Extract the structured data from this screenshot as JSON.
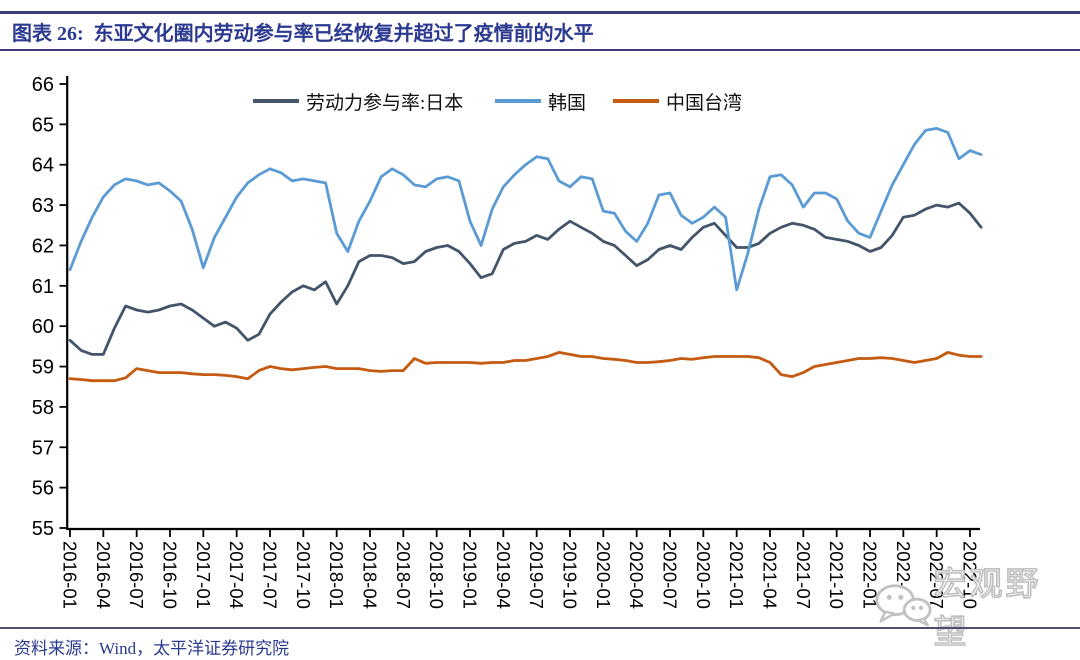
{
  "header": {
    "title": "图表 26:  东亚文化圈内劳动参与率已经恢复并超过了疫情前的水平"
  },
  "footer": {
    "source_label": "资料来源：Wind，太平洋证券研究院"
  },
  "watermark": {
    "icon": "wechat-icon",
    "text": "宏观野望"
  },
  "chart_data": {
    "type": "line",
    "title": "东亚文化圈内劳动参与率已经恢复并超过了疫情前的水平",
    "xlabel": "",
    "ylabel": "",
    "ylim": [
      55,
      66
    ],
    "y_ticks": [
      55,
      56,
      57,
      58,
      59,
      60,
      61,
      62,
      63,
      64,
      65,
      66
    ],
    "grid": false,
    "legend_position": "top",
    "x_frequency": "monthly",
    "x_start": "2016-01",
    "x_end": "2022-11",
    "x_tick_labels": [
      "2016-01",
      "2016-04",
      "2016-07",
      "2016-10",
      "2017-01",
      "2017-04",
      "2017-07",
      "2017-10",
      "2018-01",
      "2018-04",
      "2018-07",
      "2018-10",
      "2019-01",
      "2019-04",
      "2019-07",
      "2019-10",
      "2020-01",
      "2020-04",
      "2020-07",
      "2020-10",
      "2021-01",
      "2021-04",
      "2021-07",
      "2021-10",
      "2022-01",
      "2022-04",
      "2022-07",
      "2022-10"
    ],
    "series": [
      {
        "name": "劳动力参与率:日本",
        "color": "#44546A",
        "values": [
          59.65,
          59.4,
          59.3,
          59.3,
          59.95,
          60.5,
          60.4,
          60.35,
          60.4,
          60.5,
          60.55,
          60.4,
          60.2,
          60.0,
          60.1,
          59.95,
          59.65,
          59.8,
          60.3,
          60.6,
          60.85,
          61.0,
          60.9,
          61.1,
          60.55,
          61.0,
          61.6,
          61.75,
          61.75,
          61.7,
          61.55,
          61.6,
          61.85,
          61.95,
          62.0,
          61.85,
          61.55,
          61.2,
          61.3,
          61.9,
          62.05,
          62.1,
          62.25,
          62.15,
          62.4,
          62.6,
          62.45,
          62.3,
          62.1,
          62.0,
          61.75,
          61.5,
          61.65,
          61.9,
          62.0,
          61.9,
          62.2,
          62.45,
          62.55,
          62.25,
          61.95,
          61.95,
          62.05,
          62.3,
          62.45,
          62.55,
          62.5,
          62.4,
          62.2,
          62.15,
          62.1,
          62.0,
          61.85,
          61.95,
          62.25,
          62.7,
          62.75,
          62.9,
          63.0,
          62.95,
          63.05,
          62.8,
          62.45
        ]
      },
      {
        "name": "韩国",
        "color": "#5B9BD5",
        "values": [
          61.4,
          62.1,
          62.7,
          63.2,
          63.5,
          63.65,
          63.6,
          63.5,
          63.55,
          63.35,
          63.1,
          62.4,
          61.45,
          62.2,
          62.7,
          63.2,
          63.55,
          63.75,
          63.9,
          63.8,
          63.6,
          63.65,
          63.6,
          63.55,
          62.3,
          61.85,
          62.6,
          63.1,
          63.7,
          63.9,
          63.75,
          63.5,
          63.45,
          63.65,
          63.7,
          63.6,
          62.6,
          62.0,
          62.9,
          63.45,
          63.75,
          64.0,
          64.2,
          64.15,
          63.6,
          63.45,
          63.7,
          63.65,
          62.85,
          62.8,
          62.35,
          62.1,
          62.55,
          63.25,
          63.3,
          62.75,
          62.55,
          62.7,
          62.95,
          62.7,
          60.9,
          61.8,
          62.9,
          63.7,
          63.75,
          63.5,
          62.95,
          63.3,
          63.3,
          63.15,
          62.6,
          62.3,
          62.2,
          62.85,
          63.5,
          64.0,
          64.5,
          64.85,
          64.9,
          64.8,
          64.15,
          64.35,
          64.25
        ]
      },
      {
        "name": "中国台湾",
        "color": "#C55A11",
        "values": [
          58.7,
          58.68,
          58.65,
          58.65,
          58.65,
          58.72,
          58.95,
          58.9,
          58.85,
          58.85,
          58.85,
          58.82,
          58.8,
          58.8,
          58.78,
          58.75,
          58.7,
          58.9,
          59.0,
          58.95,
          58.92,
          58.95,
          58.98,
          59.0,
          58.95,
          58.95,
          58.95,
          58.9,
          58.88,
          58.9,
          58.9,
          59.2,
          59.08,
          59.1,
          59.1,
          59.1,
          59.1,
          59.08,
          59.1,
          59.1,
          59.15,
          59.15,
          59.2,
          59.25,
          59.35,
          59.3,
          59.25,
          59.25,
          59.2,
          59.18,
          59.15,
          59.1,
          59.1,
          59.12,
          59.15,
          59.2,
          59.18,
          59.22,
          59.25,
          59.25,
          59.25,
          59.25,
          59.22,
          59.1,
          58.8,
          58.75,
          58.85,
          59.0,
          59.05,
          59.1,
          59.15,
          59.2,
          59.2,
          59.22,
          59.2,
          59.15,
          59.1,
          59.15,
          59.2,
          59.35,
          59.28,
          59.25,
          59.25
        ]
      }
    ]
  }
}
